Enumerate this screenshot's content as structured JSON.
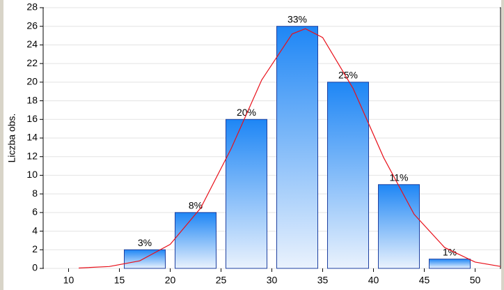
{
  "chart_data": {
    "type": "histogram",
    "y_label": "Liczba obs.",
    "bins": [
      15,
      20,
      25,
      30,
      35,
      40,
      45,
      50
    ],
    "values": [
      2,
      6,
      16,
      26,
      20,
      9,
      1
    ],
    "value_labels": [
      "3%",
      "8%",
      "20%",
      "33%",
      "25%",
      "11%",
      "1%"
    ],
    "color": "#1e86f5",
    "curve": {
      "color": "#e8101a",
      "x": [
        11,
        14,
        17,
        20,
        23,
        26,
        29,
        32,
        33.3,
        35,
        38,
        41,
        44,
        47,
        50,
        52.5
      ],
      "values": [
        0.04,
        0.2,
        0.81,
        2.58,
        6.48,
        12.87,
        20.23,
        25.18,
        25.74,
        24.79,
        19.31,
        11.9,
        5.81,
        2.24,
        0.68,
        0.21
      ]
    },
    "xlim": [
      7.5,
      52.5
    ],
    "xticks": [
      10,
      15,
      20,
      25,
      30,
      35,
      40,
      45,
      50
    ],
    "ylim": [
      0,
      28
    ],
    "yticks": [
      0,
      2,
      4,
      6,
      8,
      10,
      12,
      14,
      16,
      18,
      20,
      22,
      24,
      26,
      28
    ],
    "grid": true
  }
}
